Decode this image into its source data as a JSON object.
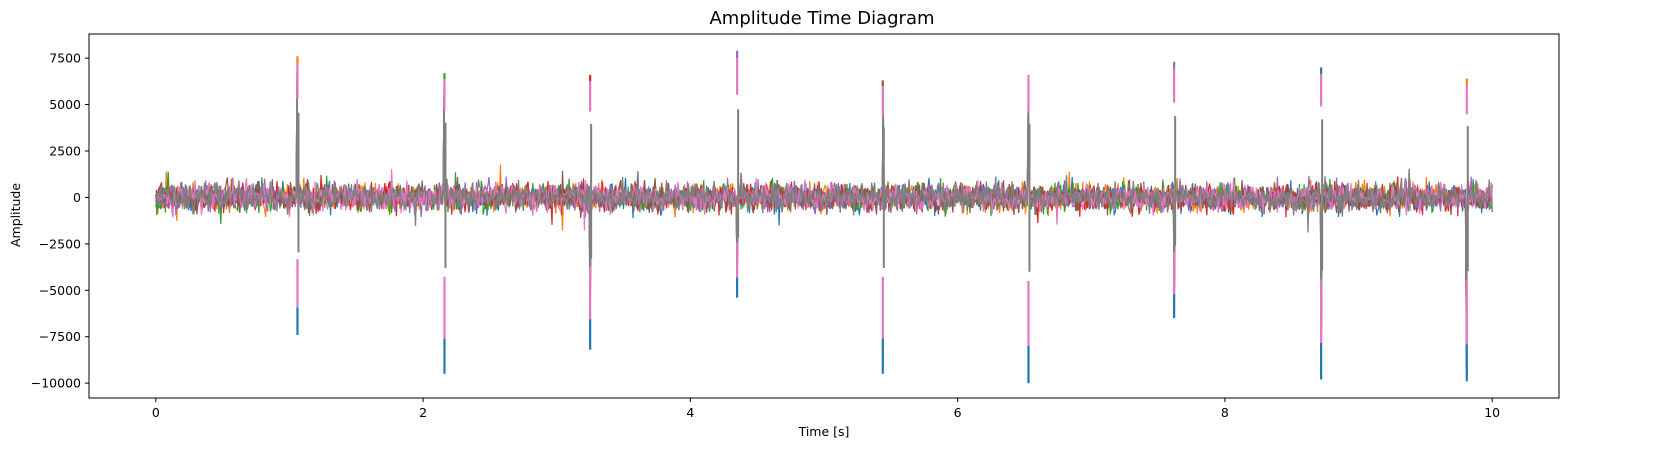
{
  "chart_data": {
    "type": "line",
    "title": "Amplitude Time Diagram",
    "xlabel": "Time [s]",
    "ylabel": "Amplitude",
    "xlim": [
      -0.5,
      10.5
    ],
    "ylim": [
      -10800,
      8800
    ],
    "xticks": [
      0,
      2,
      4,
      6,
      8,
      10
    ],
    "yticks": [
      -10000,
      -7500,
      -5000,
      -2500,
      0,
      2500,
      5000,
      7500
    ],
    "ytick_labels": [
      "−10000",
      "−7500",
      "−5000",
      "−2500",
      "0",
      "2500",
      "5000",
      "7500"
    ],
    "xtick_labels": [
      "0",
      "2",
      "4",
      "6",
      "8",
      "10"
    ],
    "grid": false,
    "legend": "none",
    "colors": [
      "#1f77b4",
      "#ff7f0e",
      "#2ca02c",
      "#d62728",
      "#9467bd",
      "#8c564b",
      "#e377c2",
      "#7f7f7f"
    ],
    "baseline_noise_amplitude": 900,
    "spikes": [
      {
        "t": 1.06,
        "max": 7600,
        "min": -7400
      },
      {
        "t": 2.16,
        "max": 6700,
        "min": -9500
      },
      {
        "t": 3.25,
        "max": 6600,
        "min": -8200
      },
      {
        "t": 4.35,
        "max": 7900,
        "min": -5400
      },
      {
        "t": 5.44,
        "max": 6300,
        "min": -9500
      },
      {
        "t": 6.53,
        "max": 6600,
        "min": -10000
      },
      {
        "t": 7.62,
        "max": 7300,
        "min": -6500
      },
      {
        "t": 8.72,
        "max": 7000,
        "min": -9800
      },
      {
        "t": 9.81,
        "max": 6400,
        "min": -9900
      }
    ]
  }
}
